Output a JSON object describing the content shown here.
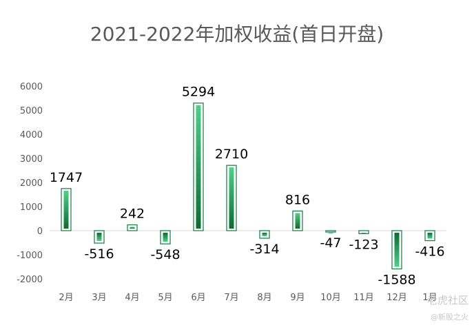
{
  "chart_data": {
    "type": "bar",
    "title": "2021-2022年加权收益(首日开盘)",
    "xlabel": "",
    "ylabel": "",
    "categories": [
      "2月",
      "3月",
      "4月",
      "5月",
      "6月",
      "7月",
      "8月",
      "9月",
      "10月",
      "11月",
      "12月",
      "1月"
    ],
    "values": [
      1747,
      -516,
      242,
      -548,
      5294,
      2710,
      -314,
      816,
      -47,
      -123,
      -1588,
      -416
    ],
    "ylim": [
      -2000,
      6000
    ],
    "yticks": [
      -2000,
      -1000,
      0,
      1000,
      2000,
      3000,
      4000,
      5000,
      6000
    ],
    "grid": false,
    "legend": "none",
    "colors": {
      "bar_outline": "#0f7a3c",
      "bar_dark": "#0d6b33",
      "bar_light": "#4fd08a",
      "zero_line": "#d9d9d9",
      "tick_text": "#595959",
      "data_label": "#000000"
    }
  },
  "watermark": {
    "main": "老虎社区",
    "sub": "@新股之火"
  }
}
